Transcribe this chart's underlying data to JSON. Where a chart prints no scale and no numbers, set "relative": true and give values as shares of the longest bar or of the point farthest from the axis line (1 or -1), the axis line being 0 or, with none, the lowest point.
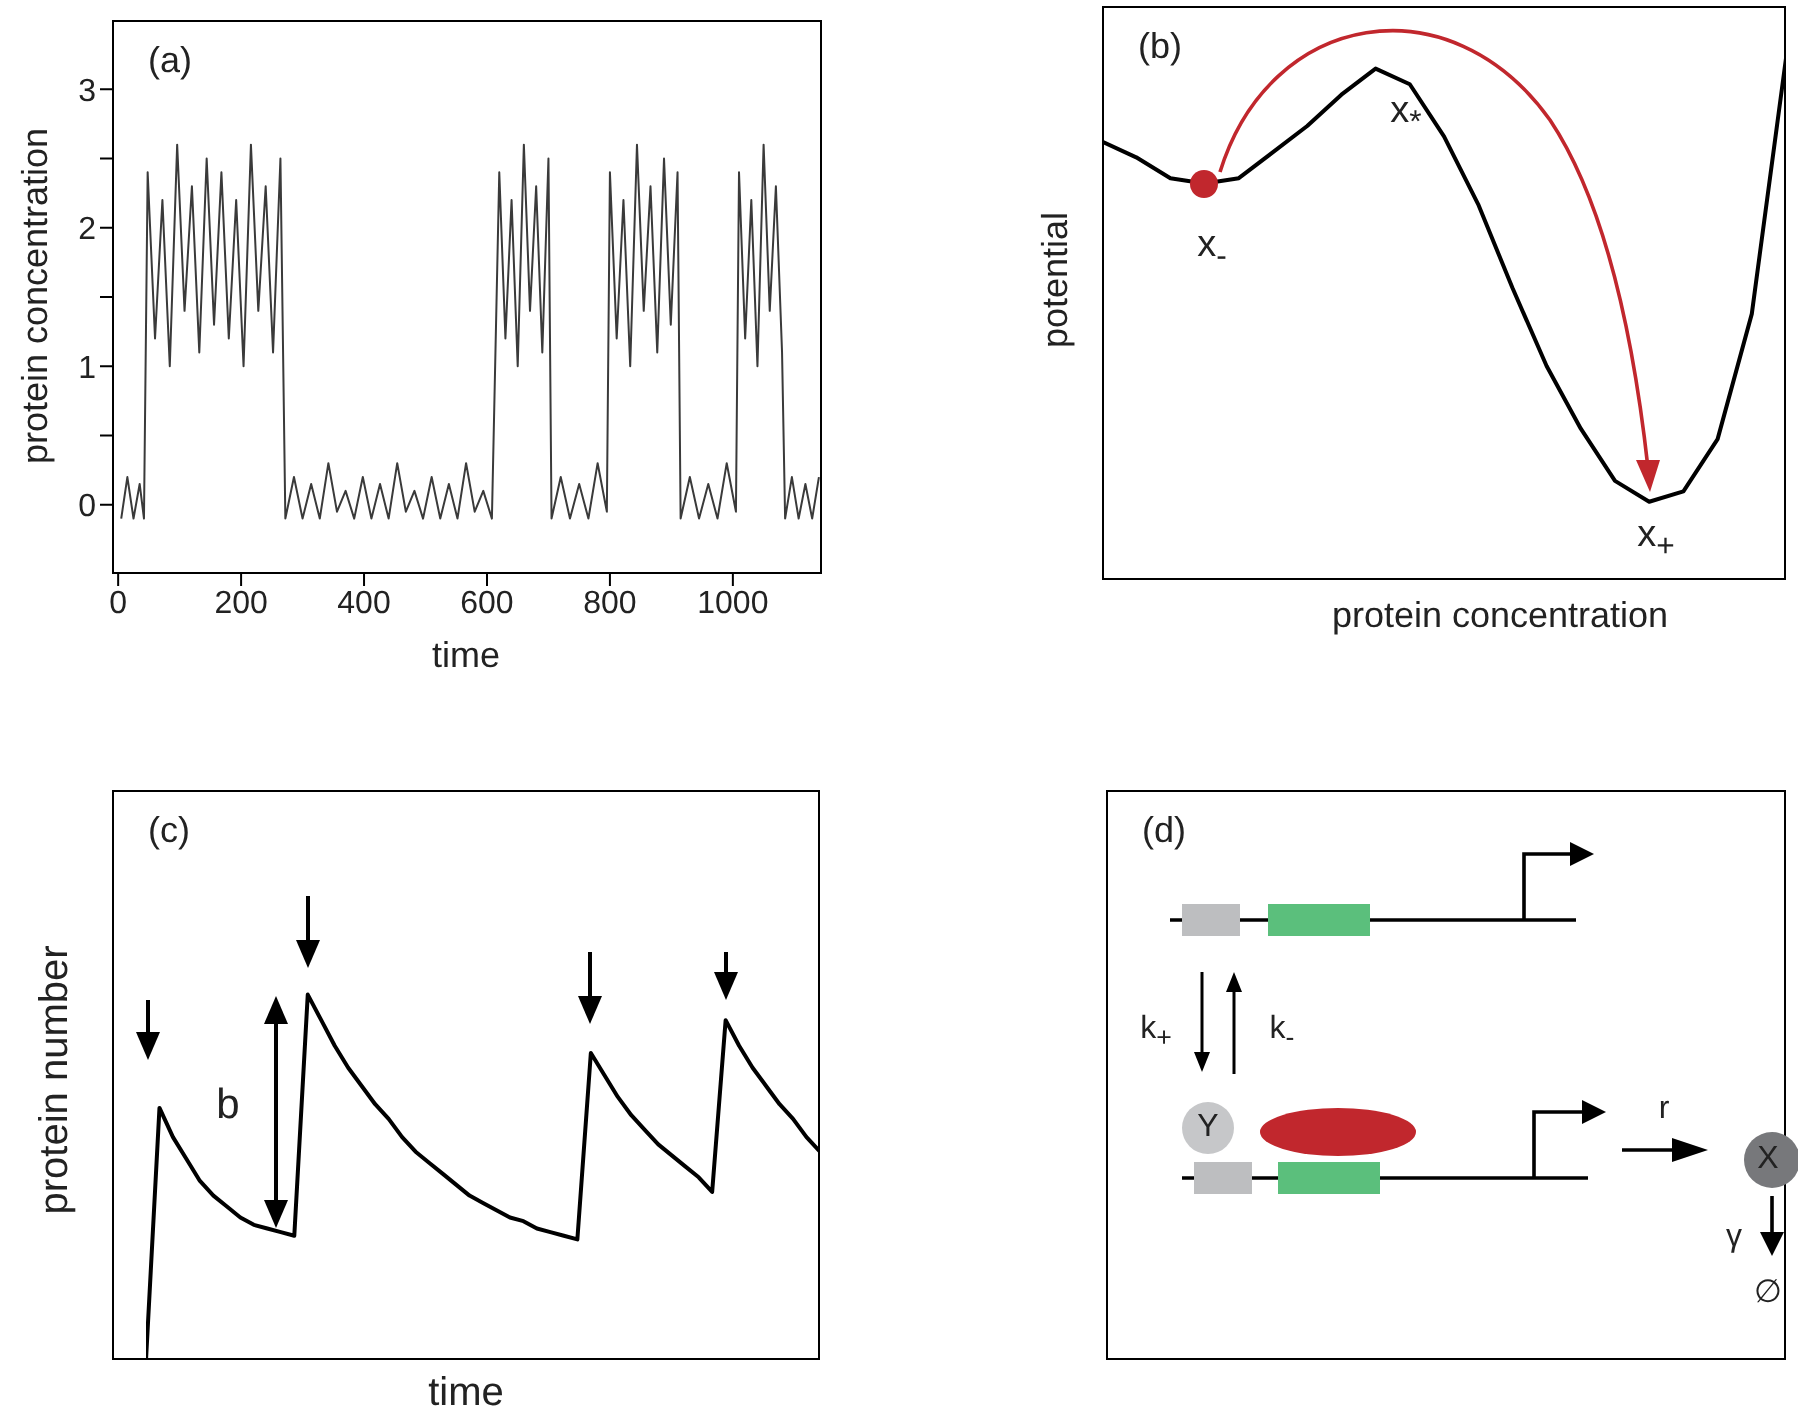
{
  "chart_data": [
    {
      "type": "line",
      "title": "(a)",
      "xlabel": "time",
      "ylabel": "protein concentration",
      "marker": "none",
      "xlim": [
        -10,
        1145
      ],
      "ylim": [
        -0.5,
        3.5
      ],
      "xticks": [
        0,
        200,
        400,
        600,
        800,
        1000
      ],
      "yticks": [
        0,
        {
          "value": 0.5,
          "label": null
        },
        1,
        {
          "value": 1.5,
          "label": null
        },
        2,
        {
          "value": 2.5,
          "label": null
        },
        3
      ],
      "x": [
        5,
        15,
        25,
        35,
        42,
        48,
        60,
        72,
        84,
        96,
        108,
        120,
        132,
        144,
        156,
        168,
        180,
        192,
        204,
        216,
        228,
        240,
        252,
        264,
        272,
        286,
        300,
        314,
        328,
        342,
        356,
        370,
        384,
        398,
        412,
        426,
        440,
        454,
        468,
        482,
        496,
        510,
        524,
        538,
        552,
        566,
        580,
        594,
        608,
        620,
        630,
        640,
        650,
        660,
        670,
        680,
        690,
        700,
        705,
        720,
        735,
        750,
        765,
        780,
        795,
        800,
        811,
        822,
        833,
        844,
        855,
        866,
        877,
        888,
        899,
        910,
        915,
        930,
        945,
        960,
        975,
        990,
        1005,
        1010,
        1020,
        1030,
        1040,
        1050,
        1060,
        1070,
        1080,
        1085,
        1096,
        1107,
        1118,
        1129,
        1140
      ],
      "series": [
        {
          "color": "#3a3a3a",
          "values": [
            -0.1,
            0.2,
            -0.1,
            0.15,
            -0.1,
            2.4,
            1.2,
            2.2,
            1.0,
            2.6,
            1.4,
            2.3,
            1.1,
            2.5,
            1.3,
            2.4,
            1.2,
            2.2,
            1.0,
            2.6,
            1.4,
            2.3,
            1.1,
            2.5,
            -0.1,
            0.2,
            -0.1,
            0.15,
            -0.1,
            0.3,
            -0.05,
            0.1,
            -0.1,
            0.2,
            -0.1,
            0.15,
            -0.1,
            0.3,
            -0.05,
            0.1,
            -0.1,
            0.2,
            -0.1,
            0.15,
            -0.1,
            0.3,
            -0.05,
            0.1,
            -0.1,
            2.4,
            1.2,
            2.2,
            1.0,
            2.6,
            1.4,
            2.3,
            1.1,
            2.5,
            -0.1,
            0.2,
            -0.1,
            0.15,
            -0.1,
            0.3,
            -0.05,
            2.4,
            1.2,
            2.2,
            1.0,
            2.6,
            1.4,
            2.3,
            1.1,
            2.5,
            1.3,
            2.4,
            -0.1,
            0.2,
            -0.1,
            0.15,
            -0.1,
            0.3,
            -0.05,
            2.4,
            1.2,
            2.2,
            1.0,
            2.6,
            1.4,
            2.3,
            1.1,
            -0.1,
            0.2,
            -0.1,
            0.15,
            -0.1,
            0.2
          ]
        }
      ]
    },
    {
      "type": "line",
      "title": "(b)",
      "xlabel": "protein concentration",
      "ylabel": "potential",
      "relative": true,
      "marker": "none",
      "annotations": [
        "x$_{-}$",
        "x$_{*}$",
        "x$_{+}$"
      ],
      "categories": [
        null,
        null,
        null,
        null,
        null,
        null,
        null,
        null,
        null,
        null,
        null,
        null,
        null,
        null,
        null,
        null,
        null,
        null,
        null,
        null,
        null
      ],
      "series": [
        {
          "type": "line",
          "color": "#000000",
          "values": [
            0.84,
            0.81,
            0.77,
            0.76,
            0.77,
            0.82,
            0.87,
            0.93,
            0.98,
            0.95,
            0.85,
            0.72,
            0.56,
            0.41,
            0.29,
            0.19,
            0.15,
            0.17,
            0.27,
            0.51,
            1.0
          ]
        }
      ]
    },
    {
      "type": "line",
      "title": "(c)",
      "xlabel": "time",
      "ylabel": "protein number",
      "relative": true,
      "marker": "none",
      "annotations": [
        "b"
      ],
      "categories": [
        null,
        null,
        null,
        null,
        null,
        null,
        null,
        null,
        null,
        null,
        null,
        null,
        null,
        null,
        null,
        null,
        null,
        null,
        null,
        null,
        null,
        null,
        null,
        null,
        null,
        null,
        null,
        null,
        null,
        null,
        null,
        null,
        null,
        null,
        null,
        null,
        null,
        null,
        null,
        null,
        null,
        null,
        null,
        null,
        null,
        null,
        null,
        null,
        null,
        null,
        null
      ],
      "series": [
        {
          "color": "#000000",
          "values": [
            0,
            0.69,
            0.61,
            0.55,
            0.49,
            0.45,
            0.42,
            0.39,
            0.37,
            0.36,
            0.35,
            0.34,
            1.0,
            0.93,
            0.86,
            0.8,
            0.75,
            0.7,
            0.66,
            0.61,
            0.57,
            0.54,
            0.51,
            0.48,
            0.45,
            0.43,
            0.41,
            0.39,
            0.38,
            0.36,
            0.35,
            0.34,
            0.33,
            0.84,
            0.78,
            0.72,
            0.67,
            0.63,
            0.59,
            0.56,
            0.53,
            0.5,
            0.46,
            0.93,
            0.86,
            0.8,
            0.75,
            0.7,
            0.66,
            0.61,
            0.57
          ]
        }
      ]
    },
    {
      "type": "other",
      "title": "(d)",
      "annotations": [
        "k$_{+}$",
        "k$_{-}$",
        "Y",
        "r",
        "X",
        "γ",
        "∅"
      ]
    }
  ]
}
